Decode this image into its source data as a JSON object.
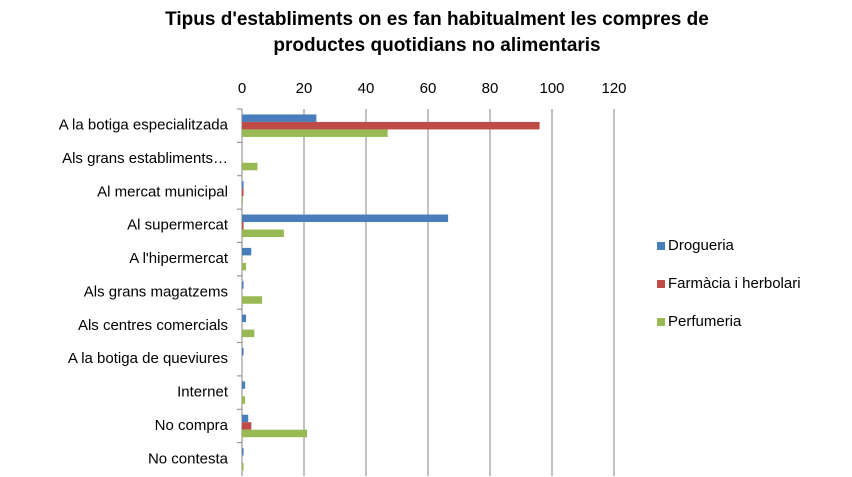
{
  "chart_data": {
    "type": "bar",
    "orientation": "horizontal",
    "title": [
      "Tipus d'establiments on es fan habitualment les compres de",
      "productes quotidians no alimentaris"
    ],
    "categories": [
      "A la botiga especialitzada",
      "Als grans establiments…",
      "Al mercat municipal",
      "Al supermercat",
      "A l'hipermercat",
      "Als grans magatzems",
      "Als centres comercials",
      "A la botiga de queviures",
      "Internet",
      "No compra",
      "No contesta"
    ],
    "series": [
      {
        "name": "Drogueria",
        "color": "#4a7ebb",
        "values": [
          24,
          0,
          0.5,
          66.5,
          3,
          0.5,
          1.3,
          0.5,
          1,
          2,
          0.5
        ]
      },
      {
        "name": "Farmàcia i herbolari",
        "color": "#be4b48",
        "values": [
          96,
          0,
          0.5,
          0.5,
          0,
          0,
          0,
          0,
          0,
          3,
          0
        ]
      },
      {
        "name": "Perfumeria",
        "color": "#98b954",
        "values": [
          47,
          5,
          0.3,
          13.5,
          1.3,
          6.5,
          4,
          0,
          1,
          21,
          0.5
        ]
      }
    ],
    "xlim": [
      0,
      120
    ],
    "xticks": [
      0,
      20,
      40,
      60,
      80,
      100,
      120
    ],
    "grid": true,
    "legend": "right"
  }
}
